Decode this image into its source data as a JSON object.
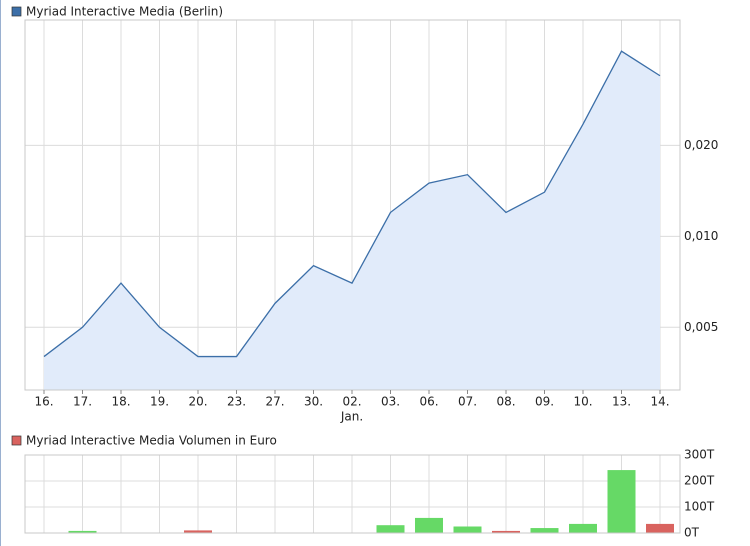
{
  "chart_data": [
    {
      "type": "line",
      "log_y": true,
      "grid": true,
      "y_axis_side": "right",
      "categories": [
        "16.",
        "17.",
        "18.",
        "19.",
        "20.",
        "23.",
        "27.",
        "30.",
        "02.",
        "03.",
        "06.",
        "07.",
        "08.",
        "09.",
        "10.",
        "13.",
        "14."
      ],
      "category_sublabels": [
        null,
        null,
        null,
        null,
        null,
        null,
        null,
        null,
        "Jan.",
        null,
        null,
        null,
        null,
        null,
        null,
        null,
        null
      ],
      "series": [
        {
          "name": "Myriad Interactive Media (Berlin)",
          "color": "#3c6fa8",
          "fill": "#e1ebfa",
          "values": [
            0.004,
            0.005,
            0.007,
            0.005,
            0.004,
            0.004,
            0.006,
            0.008,
            0.007,
            0.012,
            0.015,
            0.016,
            0.012,
            0.014,
            0.0235,
            0.041,
            0.034
          ]
        }
      ],
      "ylim": [
        0.0031,
        0.052
      ],
      "yticks": [
        {
          "value": 0.005,
          "label": "0,005"
        },
        {
          "value": 0.01,
          "label": "0,010"
        },
        {
          "value": 0.02,
          "label": "0,020"
        }
      ]
    },
    {
      "type": "bar",
      "grid": true,
      "y_axis_side": "right",
      "series": [
        {
          "name": "Myriad Interactive Media Volumen in Euro",
          "color": "#d9635f",
          "values": [
            0,
            8000,
            0,
            0,
            10000,
            0,
            0,
            0,
            0,
            30000,
            58000,
            25000,
            8000,
            19000,
            35000,
            242000,
            35000
          ],
          "bar_colors": [
            "#66d966",
            "#66d966",
            "#66d966",
            "#66d966",
            "#d9635f",
            "#66d966",
            "#66d966",
            "#66d966",
            "#66d966",
            "#66d966",
            "#66d966",
            "#66d966",
            "#d9635f",
            "#66d966",
            "#66d966",
            "#66d966",
            "#d9635f"
          ]
        }
      ],
      "ylim": [
        0,
        300000
      ],
      "yticks": [
        {
          "value": 0,
          "label": "0T"
        },
        {
          "value": 100000,
          "label": "100T"
        },
        {
          "value": 200000,
          "label": "200T"
        },
        {
          "value": 300000,
          "label": "300T"
        }
      ]
    }
  ]
}
